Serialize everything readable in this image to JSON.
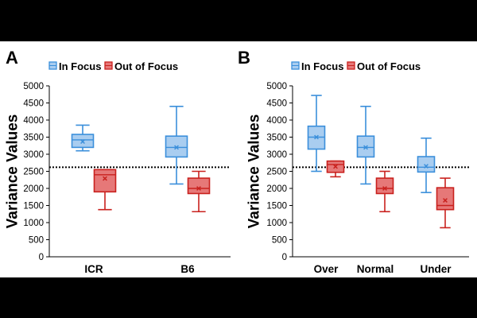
{
  "figure": {
    "background": "#000000",
    "panel_background": "#ffffff",
    "colors": {
      "in_focus_fill": "#a9cdf0",
      "in_focus_stroke": "#3b8fdb",
      "out_focus_fill": "#e67878",
      "out_focus_stroke": "#c9211e"
    }
  },
  "chart_data": [
    {
      "type": "box",
      "panel_label": "A",
      "title": "",
      "xlabel": "",
      "ylabel": "Variance Values",
      "ylim": [
        0,
        5000
      ],
      "yticks": [
        0,
        500,
        1000,
        1500,
        2000,
        2500,
        3000,
        3500,
        4000,
        4500,
        5000
      ],
      "threshold": 2620,
      "legend": {
        "position": "top",
        "entries": [
          "In Focus",
          "Out of Focus"
        ]
      },
      "categories": [
        "ICR",
        "B6"
      ],
      "series": [
        {
          "name": "In Focus",
          "boxes": [
            {
              "min": 3100,
              "q1": 3200,
              "median": 3420,
              "q3": 3580,
              "max": 3850,
              "mean": 3370
            },
            {
              "min": 2130,
              "q1": 2920,
              "median": 3200,
              "q3": 3530,
              "max": 4400,
              "mean": 3200
            }
          ]
        },
        {
          "name": "Out of Focus",
          "boxes": [
            {
              "min": 1380,
              "q1": 1900,
              "median": 2400,
              "q3": 2550,
              "max": 2550,
              "mean": 2290
            },
            {
              "min": 1320,
              "q1": 1850,
              "median": 2000,
              "q3": 2300,
              "max": 2500,
              "mean": 2000
            }
          ]
        }
      ]
    },
    {
      "type": "box",
      "panel_label": "B",
      "title": "",
      "xlabel": "",
      "ylabel": "Variance Values",
      "ylim": [
        0,
        5000
      ],
      "yticks": [
        0,
        500,
        1000,
        1500,
        2000,
        2500,
        3000,
        3500,
        4000,
        4500,
        5000
      ],
      "threshold": 2620,
      "legend": {
        "position": "top",
        "entries": [
          "In Focus",
          "Out of Focus"
        ]
      },
      "categories": [
        "Over",
        "Normal",
        "Under"
      ],
      "series": [
        {
          "name": "In Focus",
          "boxes": [
            {
              "min": 2500,
              "q1": 3150,
              "median": 3500,
              "q3": 3820,
              "max": 4720,
              "mean": 3500
            },
            {
              "min": 2130,
              "q1": 2920,
              "median": 3200,
              "q3": 3530,
              "max": 4400,
              "mean": 3200
            },
            {
              "min": 1880,
              "q1": 2480,
              "median": 2620,
              "q3": 2930,
              "max": 3470,
              "mean": 2650
            }
          ]
        },
        {
          "name": "Out of Focus",
          "boxes": [
            {
              "min": 2340,
              "q1": 2470,
              "median": 2700,
              "q3": 2800,
              "max": 2800,
              "mean": 2640
            },
            {
              "min": 1320,
              "q1": 1850,
              "median": 2000,
              "q3": 2300,
              "max": 2500,
              "mean": 2000
            },
            {
              "min": 850,
              "q1": 1380,
              "median": 1500,
              "q3": 2020,
              "max": 2300,
              "mean": 1650
            }
          ]
        }
      ]
    }
  ]
}
